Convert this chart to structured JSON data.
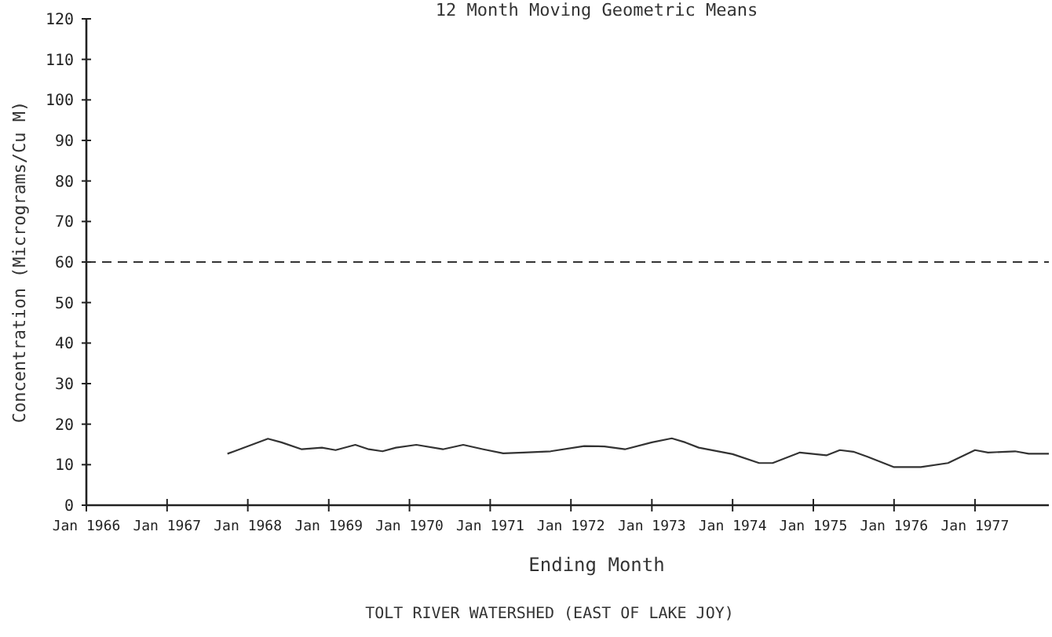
{
  "chart_data": {
    "type": "line",
    "title": "12 Month Moving Geometric Means",
    "xlabel": "Ending Month",
    "ylabel": "Concentration (Micrograms/Cu M)",
    "annotations": [
      "TOLT RIVER WATERSHED (EAST OF LAKE JOY)"
    ],
    "x": [
      "1967-10",
      "1967-11",
      "1968-04",
      "1968-06",
      "1968-09",
      "1968-12",
      "1969-02",
      "1969-05",
      "1969-07",
      "1969-09",
      "1969-11",
      "1970-02",
      "1970-06",
      "1970-09",
      "1970-12",
      "1971-03",
      "1971-06",
      "1971-10",
      "1972-03",
      "1972-06",
      "1972-09",
      "1973-01",
      "1973-04",
      "1973-06",
      "1973-08",
      "1974-01",
      "1974-05",
      "1974-07",
      "1974-11",
      "1975-03",
      "1975-05",
      "1975-07",
      "1975-09",
      "1976-01",
      "1976-05",
      "1976-09",
      "1977-01",
      "1977-03",
      "1977-07",
      "1977-09",
      "1977-12"
    ],
    "series": [
      {
        "color": "#333333",
        "values": [
          12.7,
          13.3,
          16.4,
          15.5,
          13.8,
          14.2,
          13.6,
          14.9,
          13.8,
          13.3,
          14.2,
          14.9,
          13.8,
          14.9,
          13.8,
          12.8,
          13.0,
          13.3,
          14.6,
          14.5,
          13.8,
          15.5,
          16.5,
          15.5,
          14.2,
          12.6,
          10.4,
          10.4,
          13.0,
          12.3,
          13.6,
          13.2,
          12.0,
          9.4,
          9.4,
          10.4,
          13.6,
          13.0,
          13.3,
          12.7,
          12.7
        ]
      }
    ],
    "xlim": [
      "1966-01",
      "1977-12"
    ],
    "xticks": [
      {
        "value": "1966-01",
        "label": "Jan 1966"
      },
      {
        "value": "1967-01",
        "label": "Jan 1967"
      },
      {
        "value": "1968-01",
        "label": "Jan 1968"
      },
      {
        "value": "1969-01",
        "label": "Jan 1969"
      },
      {
        "value": "1970-01",
        "label": "Jan 1970"
      },
      {
        "value": "1971-01",
        "label": "Jan 1971"
      },
      {
        "value": "1972-01",
        "label": "Jan 1972"
      },
      {
        "value": "1973-01",
        "label": "Jan 1973"
      },
      {
        "value": "1974-01",
        "label": "Jan 1974"
      },
      {
        "value": "1975-01",
        "label": "Jan 1975"
      },
      {
        "value": "1976-01",
        "label": "Jan 1976"
      },
      {
        "value": "1977-01",
        "label": "Jan 1977"
      }
    ],
    "ylim": [
      0,
      120
    ],
    "yticks": [
      0,
      10,
      20,
      30,
      40,
      50,
      60,
      70,
      80,
      90,
      100,
      110,
      120
    ],
    "ref_lines": [
      {
        "axis": "y",
        "value": 60,
        "line_style": "dashed"
      }
    ],
    "grid": false,
    "line_style": "solid",
    "marker": "none"
  }
}
